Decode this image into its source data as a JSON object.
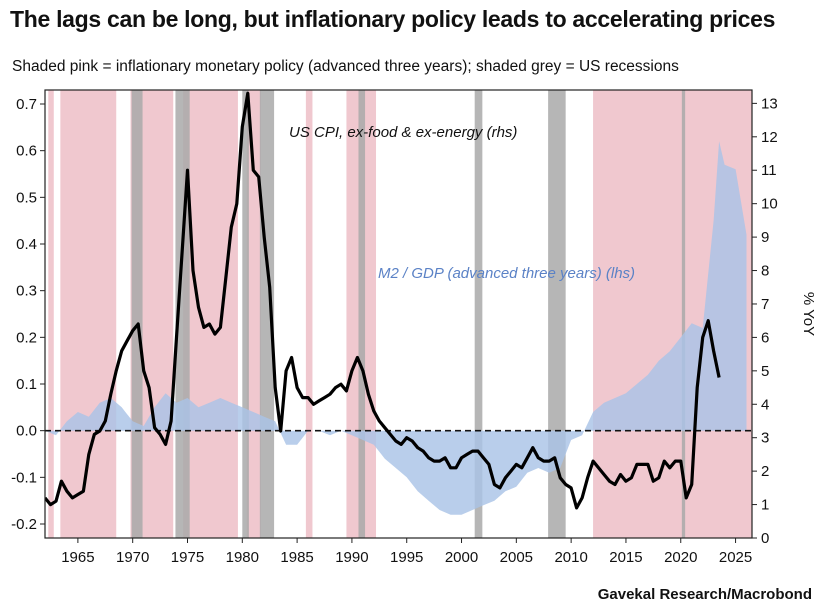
{
  "title": "The lags can be long, but inflationary policy leads to accelerating prices",
  "subtitle": "Shaded pink = inflationary monetary policy (advanced three years); shaded grey = US recessions",
  "source": "Gavekal Research/Macrobond",
  "colors": {
    "pink": "#f0c8cf",
    "grey": "#a9a9a9",
    "m2": "#a9c3e6",
    "cpi": "#000000",
    "m2_label": "#5b82c6"
  },
  "chart_data": {
    "type": "line",
    "x_range": [
      1962,
      2026.5
    ],
    "x_ticks": [
      1965,
      1970,
      1975,
      1980,
      1985,
      1990,
      1995,
      2000,
      2005,
      2010,
      2015,
      2020,
      2025
    ],
    "y_left": {
      "range": [
        -0.23,
        0.73
      ],
      "ticks": [
        -0.2,
        -0.1,
        0.0,
        0.1,
        0.2,
        0.3,
        0.4,
        0.5,
        0.6,
        0.7
      ],
      "tick_labels": [
        "-0.2",
        "-0.1",
        "0.0",
        "0.1",
        "0.2",
        "0.3",
        "0.4",
        "0.5",
        "0.6",
        "0.7"
      ]
    },
    "y_right": {
      "label": "% YoY",
      "range": [
        0,
        13.4
      ],
      "ticks": [
        0,
        1,
        2,
        3,
        4,
        5,
        6,
        7,
        8,
        9,
        10,
        11,
        12,
        13
      ],
      "tick_labels": [
        "0",
        "1",
        "2",
        "3",
        "4",
        "5",
        "6",
        "7",
        "8",
        "9",
        "10",
        "11",
        "12",
        "13"
      ]
    },
    "zero_line": 0.0,
    "annotations": [
      {
        "text": "US CPI, ex-food & ex-energy (rhs)",
        "color": "#111111"
      },
      {
        "text": "M2 / GDP (advanced three years) (lhs)",
        "color": "#5b82c6"
      }
    ],
    "pink_bands": [
      [
        1962.3,
        1962.8
      ],
      [
        1963.4,
        1968.5
      ],
      [
        1969.8,
        1973.7
      ],
      [
        1974.6,
        1979.6
      ],
      [
        1980.4,
        1981.7
      ],
      [
        1985.8,
        1986.4
      ],
      [
        1989.5,
        1992.2
      ],
      [
        2012.0,
        2026.5
      ]
    ],
    "recession_bands": [
      [
        1969.9,
        1970.9
      ],
      [
        1973.9,
        1975.2
      ],
      [
        1980.0,
        1980.6
      ],
      [
        1981.6,
        1982.9
      ],
      [
        1990.6,
        1991.2
      ],
      [
        2001.2,
        2001.9
      ],
      [
        2007.9,
        2009.5
      ],
      [
        2020.1,
        2020.4
      ]
    ],
    "series": [
      {
        "name": "M2 / GDP (advanced three years)",
        "axis": "left",
        "style": "area",
        "x": [
          1962,
          1963,
          1964,
          1965,
          1966,
          1967,
          1968,
          1969,
          1970,
          1971,
          1972,
          1973,
          1974,
          1975,
          1976,
          1977,
          1978,
          1979,
          1980,
          1981,
          1982,
          1983,
          1984,
          1985,
          1986,
          1987,
          1988,
          1989,
          1990,
          1991,
          1992,
          1993,
          1994,
          1995,
          1996,
          1997,
          1998,
          1999,
          2000,
          2001,
          2002,
          2003,
          2004,
          2005,
          2006,
          2007,
          2008,
          2009,
          2010,
          2011,
          2012,
          2013,
          2014,
          2015,
          2016,
          2017,
          2018,
          2019,
          2020,
          2021,
          2022,
          2023,
          2023.5,
          2024,
          2025,
          2026
        ],
        "y": [
          0.0,
          -0.01,
          0.02,
          0.04,
          0.03,
          0.06,
          0.07,
          0.05,
          0.02,
          0.01,
          0.05,
          0.08,
          0.06,
          0.07,
          0.05,
          0.06,
          0.07,
          0.06,
          0.05,
          0.04,
          0.03,
          0.02,
          -0.03,
          -0.03,
          0.0,
          0.0,
          -0.01,
          0.0,
          -0.01,
          -0.02,
          -0.03,
          -0.06,
          -0.08,
          -0.1,
          -0.13,
          -0.15,
          -0.17,
          -0.18,
          -0.18,
          -0.17,
          -0.16,
          -0.15,
          -0.13,
          -0.12,
          -0.09,
          -0.08,
          -0.09,
          -0.08,
          -0.02,
          -0.01,
          0.04,
          0.06,
          0.07,
          0.08,
          0.1,
          0.12,
          0.15,
          0.17,
          0.2,
          0.23,
          0.22,
          0.45,
          0.62,
          0.57,
          0.56,
          0.42
        ]
      },
      {
        "name": "US CPI, ex-food & ex-energy",
        "axis": "right",
        "style": "line",
        "x": [
          1962.0,
          1962.5,
          1963.0,
          1963.5,
          1964.0,
          1964.5,
          1965.0,
          1965.5,
          1966.0,
          1966.5,
          1967.0,
          1967.5,
          1968.0,
          1968.5,
          1969.0,
          1969.5,
          1970.0,
          1970.5,
          1971.0,
          1971.5,
          1972.0,
          1972.5,
          1973.0,
          1973.5,
          1974.0,
          1974.5,
          1975.0,
          1975.5,
          1976.0,
          1976.5,
          1977.0,
          1977.5,
          1978.0,
          1978.5,
          1979.0,
          1979.5,
          1980.0,
          1980.5,
          1981.0,
          1981.5,
          1982.0,
          1982.5,
          1983.0,
          1983.5,
          1984.0,
          1984.5,
          1985.0,
          1985.5,
          1986.0,
          1986.5,
          1987.0,
          1987.5,
          1988.0,
          1988.5,
          1989.0,
          1989.5,
          1990.0,
          1990.5,
          1991.0,
          1991.5,
          1992.0,
          1992.5,
          1993.0,
          1993.5,
          1994.0,
          1994.5,
          1995.0,
          1995.5,
          1996.0,
          1996.5,
          1997.0,
          1997.5,
          1998.0,
          1998.5,
          1999.0,
          1999.5,
          2000.0,
          2000.5,
          2001.0,
          2001.5,
          2002.0,
          2002.5,
          2003.0,
          2003.5,
          2004.0,
          2004.5,
          2005.0,
          2005.5,
          2006.0,
          2006.5,
          2007.0,
          2007.5,
          2008.0,
          2008.5,
          2009.0,
          2009.5,
          2010.0,
          2010.5,
          2011.0,
          2011.5,
          2012.0,
          2012.5,
          2013.0,
          2013.5,
          2014.0,
          2014.5,
          2015.0,
          2015.5,
          2016.0,
          2016.5,
          2017.0,
          2017.5,
          2018.0,
          2018.5,
          2019.0,
          2019.5,
          2020.0,
          2020.5,
          2021.0,
          2021.5,
          2022.0,
          2022.5,
          2023.0,
          2023.5
        ],
        "y": [
          1.2,
          1.0,
          1.1,
          1.7,
          1.4,
          1.2,
          1.3,
          1.4,
          2.5,
          3.1,
          3.2,
          3.5,
          4.3,
          5.0,
          5.6,
          5.9,
          6.2,
          6.4,
          5.0,
          4.5,
          3.3,
          3.1,
          2.8,
          3.5,
          6.0,
          8.5,
          11.0,
          8.0,
          6.9,
          6.3,
          6.4,
          6.1,
          6.3,
          7.8,
          9.3,
          10.0,
          12.3,
          13.3,
          11.0,
          10.8,
          9.0,
          7.5,
          4.5,
          3.2,
          5.0,
          5.4,
          4.5,
          4.2,
          4.2,
          4.0,
          4.1,
          4.2,
          4.3,
          4.5,
          4.6,
          4.4,
          5.0,
          5.4,
          5.0,
          4.3,
          3.8,
          3.5,
          3.3,
          3.1,
          2.9,
          2.8,
          3.0,
          2.9,
          2.7,
          2.6,
          2.4,
          2.3,
          2.3,
          2.4,
          2.1,
          2.1,
          2.4,
          2.5,
          2.6,
          2.6,
          2.4,
          2.2,
          1.6,
          1.5,
          1.8,
          2.0,
          2.2,
          2.1,
          2.4,
          2.7,
          2.4,
          2.3,
          2.3,
          2.4,
          1.8,
          1.6,
          1.5,
          0.9,
          1.2,
          1.8,
          2.3,
          2.1,
          1.9,
          1.7,
          1.6,
          1.9,
          1.7,
          1.8,
          2.2,
          2.2,
          2.2,
          1.7,
          1.8,
          2.3,
          2.1,
          2.3,
          2.3,
          1.2,
          1.6,
          4.5,
          6.0,
          6.5,
          5.6,
          4.8
        ]
      }
    ]
  }
}
